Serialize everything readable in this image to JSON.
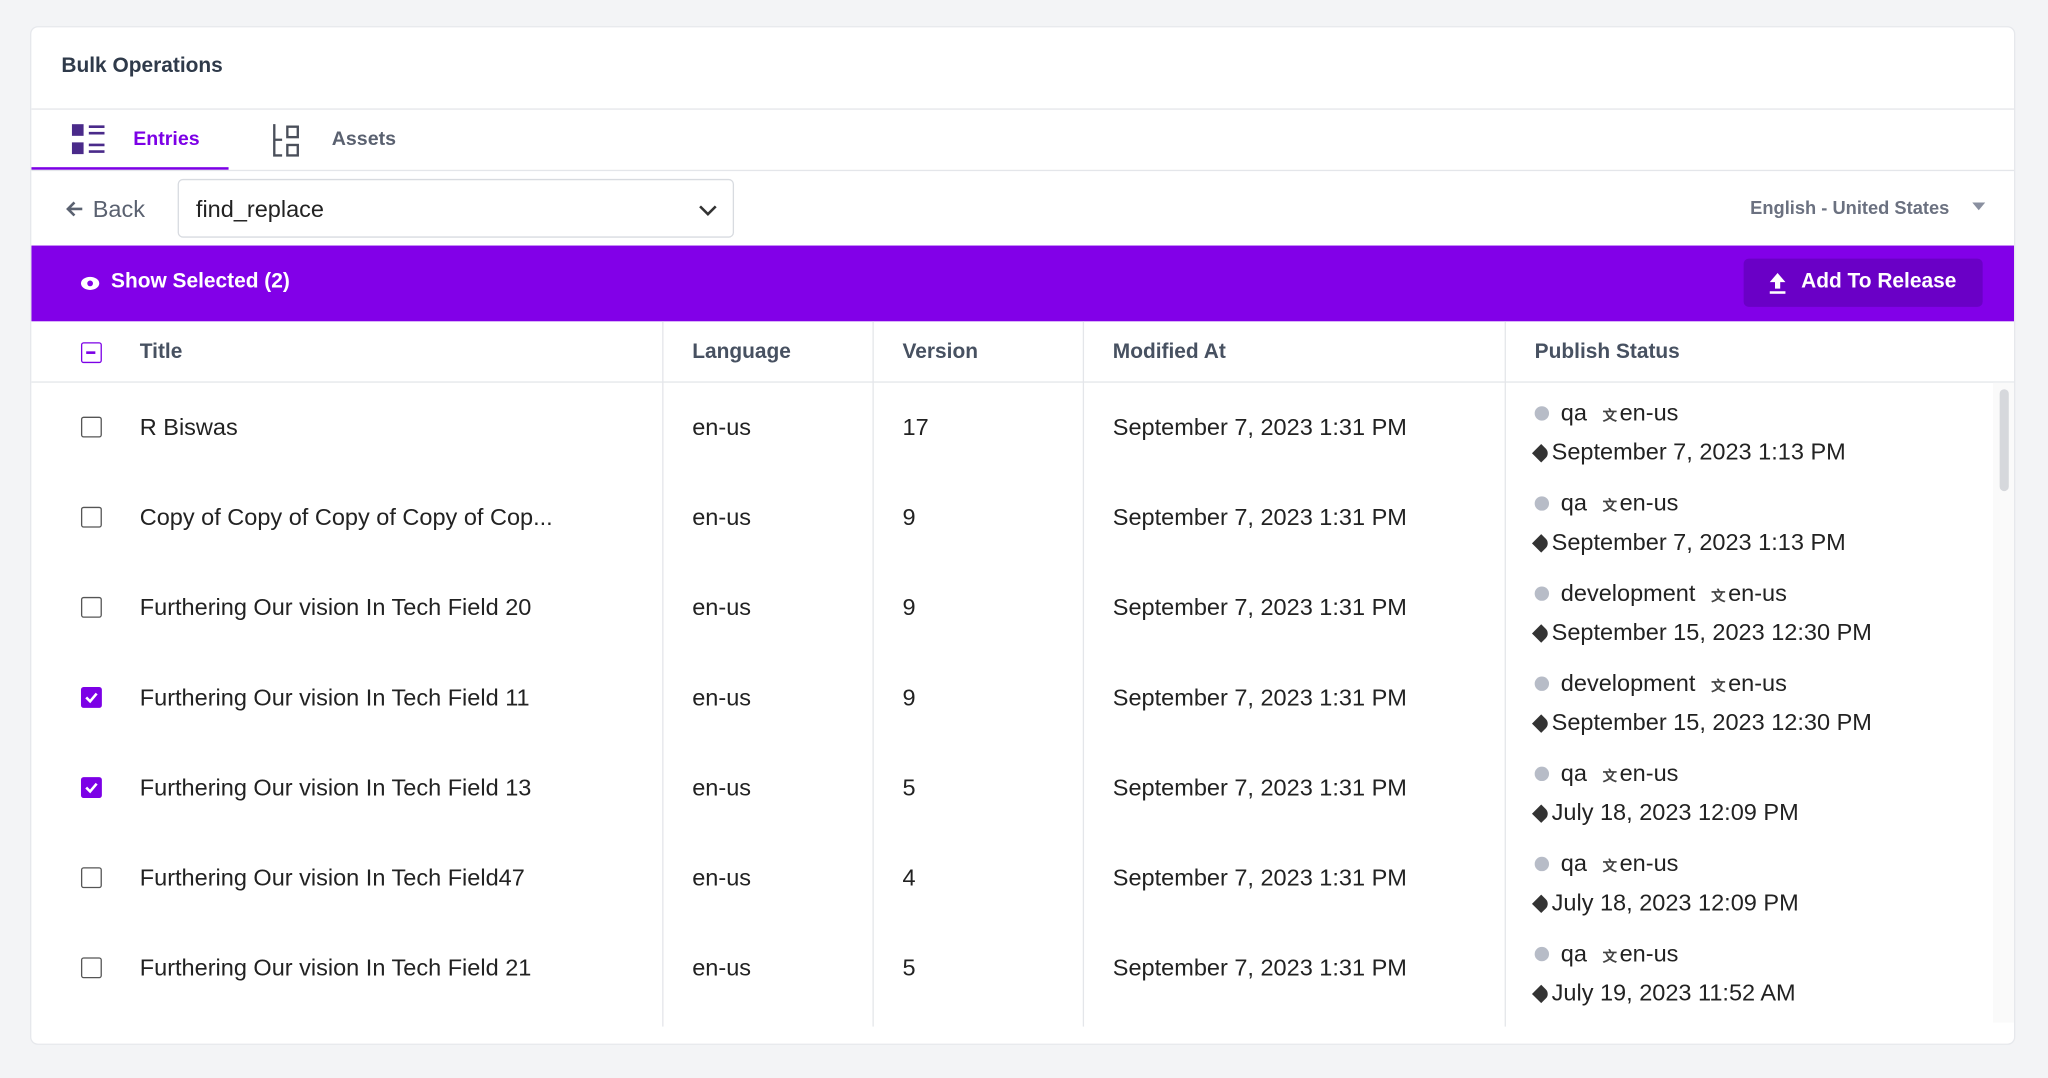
{
  "header": {
    "title": "Bulk Operations"
  },
  "tabs": [
    "Entries",
    "Assets"
  ],
  "toolbar": {
    "back": "Back",
    "content_type": "find_replace",
    "locale": "English - United States"
  },
  "selection_bar": {
    "show_selected": "Show Selected (2)",
    "add_to_release": "Add To Release"
  },
  "table": {
    "columns": [
      "Title",
      "Language",
      "Version",
      "Modified At",
      "Publish Status"
    ],
    "rows": [
      {
        "selected": false,
        "title": "R Biswas",
        "language": "en-us",
        "version": 17,
        "modified_at": "September 7, 2023 1:31 PM",
        "environment": "qa",
        "locale": "en-us",
        "published_at": "September 7, 2023 1:13 PM"
      },
      {
        "selected": false,
        "title": "Copy of Copy of Copy of Copy of Cop...",
        "language": "en-us",
        "version": 9,
        "modified_at": "September 7, 2023 1:31 PM",
        "environment": "qa",
        "locale": "en-us",
        "published_at": "September 7, 2023 1:13 PM"
      },
      {
        "selected": false,
        "title": "Furthering Our vision In Tech Field 20",
        "language": "en-us",
        "version": 9,
        "modified_at": "September 7, 2023 1:31 PM",
        "environment": "development",
        "locale": "en-us",
        "published_at": "September 15, 2023 12:30 PM"
      },
      {
        "selected": true,
        "title": "Furthering Our vision In Tech Field 11",
        "language": "en-us",
        "version": 9,
        "modified_at": "September 7, 2023 1:31 PM",
        "environment": "development",
        "locale": "en-us",
        "published_at": "September 15, 2023 12:30 PM"
      },
      {
        "selected": true,
        "title": "Furthering Our vision In Tech Field 13",
        "language": "en-us",
        "version": 5,
        "modified_at": "September 7, 2023 1:31 PM",
        "environment": "qa",
        "locale": "en-us",
        "published_at": "July 18, 2023 12:09 PM"
      },
      {
        "selected": false,
        "title": "Furthering Our vision In Tech Field47",
        "language": "en-us",
        "version": 4,
        "modified_at": "September 7, 2023 1:31 PM",
        "environment": "qa",
        "locale": "en-us",
        "published_at": "July 18, 2023 12:09 PM"
      },
      {
        "selected": false,
        "title": "Furthering Our vision In Tech Field 21",
        "language": "en-us",
        "version": 5,
        "modified_at": "September 7, 2023 1:31 PM",
        "environment": "qa",
        "locale": "en-us",
        "published_at": "July 19, 2023 11:52 AM"
      }
    ]
  }
}
